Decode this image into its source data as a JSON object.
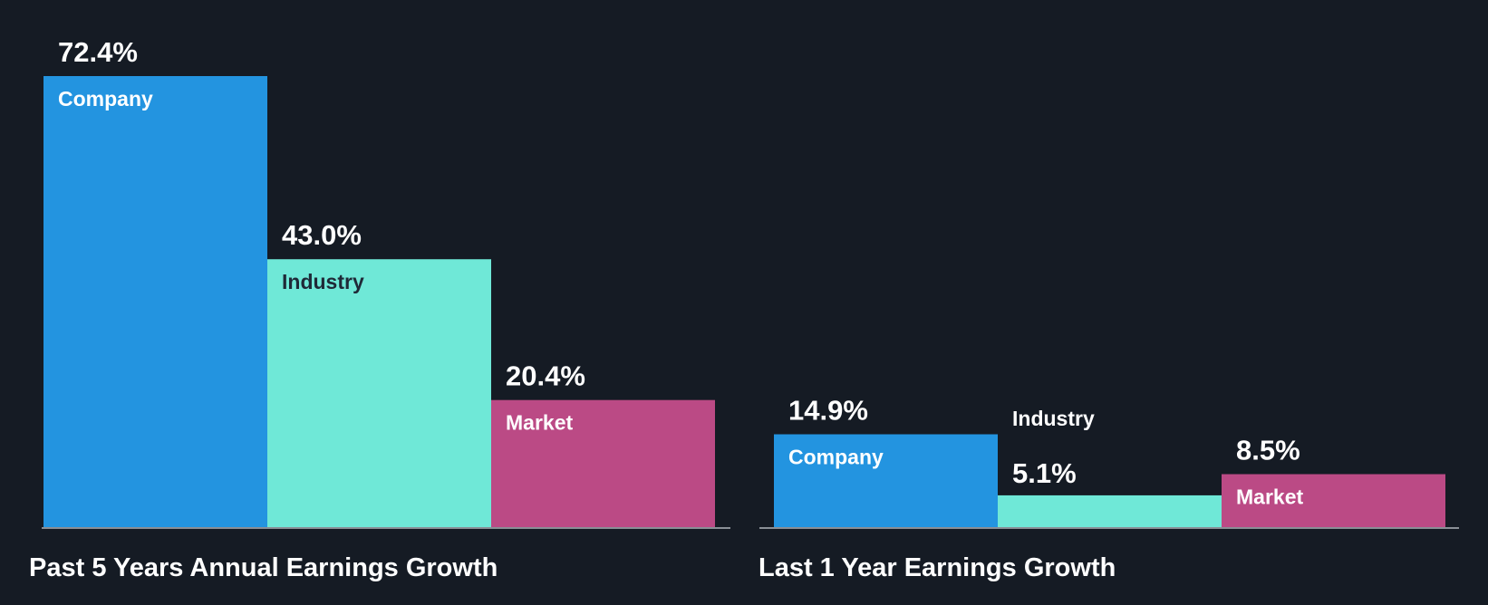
{
  "colors": {
    "background": "#151b24",
    "company": "#2394e0",
    "industry": "#6fe8d7",
    "market": "#bb4a85",
    "axis": "#8a8f96",
    "label_on_light": "#1f2937",
    "text": "#ffffff"
  },
  "chart_data": [
    {
      "type": "bar",
      "title": "Past 5 Years Annual Earnings Growth",
      "categories": [
        "Company",
        "Industry",
        "Market"
      ],
      "values": [
        72.4,
        43.0,
        20.4
      ],
      "value_labels": [
        "72.4%",
        "43.0%",
        "20.4%"
      ],
      "unit": "%",
      "ylim": [
        0,
        72.4
      ]
    },
    {
      "type": "bar",
      "title": "Last 1 Year Earnings Growth",
      "categories": [
        "Company",
        "Industry",
        "Market"
      ],
      "values": [
        14.9,
        5.1,
        8.5
      ],
      "value_labels": [
        "14.9%",
        "5.1%",
        "8.5%"
      ],
      "unit": "%",
      "ylim": [
        0,
        72.4
      ]
    }
  ]
}
